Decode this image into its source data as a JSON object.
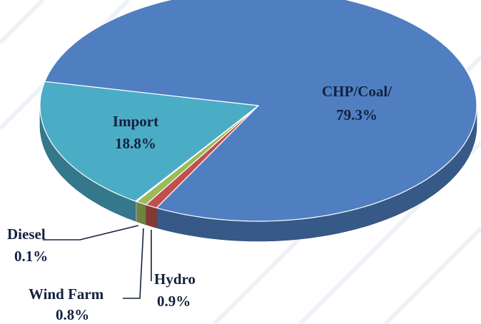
{
  "chart_data": {
    "type": "pie3d",
    "categories": [
      "CHP/Coal/",
      "Hydro",
      "Wind Farm",
      "Diesel",
      "Import"
    ],
    "values": [
      79.3,
      0.9,
      0.8,
      0.1,
      18.8
    ],
    "value_labels": [
      "79.3%",
      "0.9%",
      "0.8%",
      "0.1%",
      "18.8%"
    ],
    "colors": [
      "#4f7fc1",
      "#c0504d",
      "#9bbb59",
      "#e8edf4",
      "#4bacc6"
    ]
  }
}
